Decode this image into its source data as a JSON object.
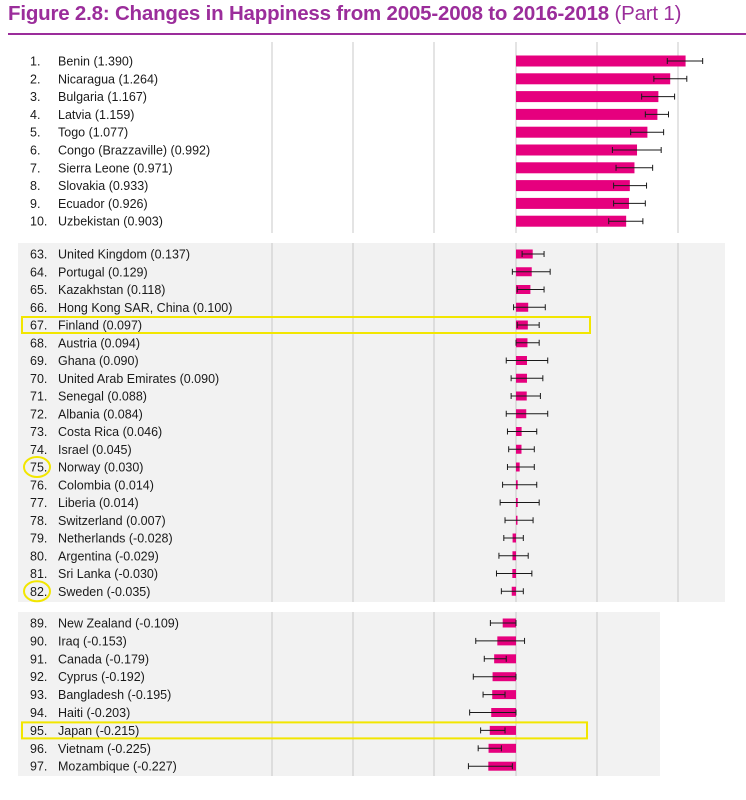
{
  "title": {
    "main": "Figure 2.8: Changes in Happiness from 2005-2008 to 2016-2018",
    "part": "(Part 1)"
  },
  "colors": {
    "title": "#9b2d9b",
    "bar": "#e6007e",
    "error_bar": "#1a1a1a",
    "highlight": "#f2e600",
    "panel_bg": "#f2f2f2",
    "grid": "#c8c8c8"
  },
  "chart_data": {
    "type": "bar",
    "orientation": "horizontal",
    "grid": true,
    "legend": "none",
    "panels": [
      {
        "rows": [
          {
            "rank": "1.",
            "country": "Benin",
            "value": 1.39,
            "err_low": 1.24,
            "err_high": 1.53
          },
          {
            "rank": "2.",
            "country": "Nicaragua",
            "value": 1.264,
            "err_low": 1.13,
            "err_high": 1.4
          },
          {
            "rank": "3.",
            "country": "Bulgaria",
            "value": 1.167,
            "err_low": 1.03,
            "err_high": 1.3
          },
          {
            "rank": "4.",
            "country": "Latvia",
            "value": 1.159,
            "err_low": 1.06,
            "err_high": 1.25
          },
          {
            "rank": "5.",
            "country": "Togo",
            "value": 1.077,
            "err_low": 0.94,
            "err_high": 1.21
          },
          {
            "rank": "6.",
            "country": "Congo (Brazzaville)",
            "value": 0.992,
            "err_low": 0.79,
            "err_high": 1.19
          },
          {
            "rank": "7.",
            "country": "Sierra Leone",
            "value": 0.971,
            "err_low": 0.82,
            "err_high": 1.12
          },
          {
            "rank": "8.",
            "country": "Slovakia",
            "value": 0.933,
            "err_low": 0.8,
            "err_high": 1.07
          },
          {
            "rank": "9.",
            "country": "Ecuador",
            "value": 0.926,
            "err_low": 0.8,
            "err_high": 1.06
          },
          {
            "rank": "10.",
            "country": "Uzbekistan",
            "value": 0.903,
            "err_low": 0.76,
            "err_high": 1.04
          }
        ]
      },
      {
        "rows": [
          {
            "rank": "63.",
            "country": "United Kingdom",
            "value": 0.137,
            "err_low": 0.05,
            "err_high": 0.23
          },
          {
            "rank": "64.",
            "country": "Portugal",
            "value": 0.129,
            "err_low": -0.03,
            "err_high": 0.28
          },
          {
            "rank": "65.",
            "country": "Kazakhstan",
            "value": 0.118,
            "err_low": 0.01,
            "err_high": 0.23
          },
          {
            "rank": "66.",
            "country": "Hong Kong SAR, China",
            "value": 0.1,
            "err_low": -0.02,
            "err_high": 0.24
          },
          {
            "rank": "67.",
            "country": "Finland",
            "value": 0.097,
            "err_low": 0.01,
            "err_high": 0.19
          },
          {
            "rank": "68.",
            "country": "Austria",
            "value": 0.094,
            "err_low": 0.0,
            "err_high": 0.19
          },
          {
            "rank": "69.",
            "country": "Ghana",
            "value": 0.09,
            "err_low": -0.08,
            "err_high": 0.26
          },
          {
            "rank": "70.",
            "country": "United Arab Emirates",
            "value": 0.09,
            "err_low": -0.04,
            "err_high": 0.22
          },
          {
            "rank": "71.",
            "country": "Senegal",
            "value": 0.088,
            "err_low": -0.04,
            "err_high": 0.2
          },
          {
            "rank": "72.",
            "country": "Albania",
            "value": 0.084,
            "err_low": -0.08,
            "err_high": 0.26
          },
          {
            "rank": "73.",
            "country": "Costa Rica",
            "value": 0.046,
            "err_low": -0.07,
            "err_high": 0.17
          },
          {
            "rank": "74.",
            "country": "Israel",
            "value": 0.045,
            "err_low": -0.06,
            "err_high": 0.15
          },
          {
            "rank": "75.",
            "country": "Norway",
            "value": 0.03,
            "err_low": -0.07,
            "err_high": 0.15
          },
          {
            "rank": "76.",
            "country": "Colombia",
            "value": 0.014,
            "err_low": -0.11,
            "err_high": 0.17
          },
          {
            "rank": "77.",
            "country": "Liberia",
            "value": 0.014,
            "err_low": -0.13,
            "err_high": 0.19
          },
          {
            "rank": "78.",
            "country": "Switzerland",
            "value": 0.007,
            "err_low": -0.09,
            "err_high": 0.14
          },
          {
            "rank": "79.",
            "country": "Netherlands",
            "value": -0.028,
            "err_low": -0.1,
            "err_high": 0.06
          },
          {
            "rank": "80.",
            "country": "Argentina",
            "value": -0.029,
            "err_low": -0.14,
            "err_high": 0.1
          },
          {
            "rank": "81.",
            "country": "Sri Lanka",
            "value": -0.03,
            "err_low": -0.16,
            "err_high": 0.13
          },
          {
            "rank": "82.",
            "country": "Sweden",
            "value": -0.035,
            "err_low": -0.12,
            "err_high": 0.06
          }
        ]
      },
      {
        "rows": [
          {
            "rank": "89.",
            "country": "New Zealand",
            "value": -0.109,
            "err_low": -0.21,
            "err_high": 0.0
          },
          {
            "rank": "90.",
            "country": "Iraq",
            "value": -0.153,
            "err_low": -0.33,
            "err_high": 0.07
          },
          {
            "rank": "91.",
            "country": "Canada",
            "value": -0.179,
            "err_low": -0.26,
            "err_high": -0.08
          },
          {
            "rank": "92.",
            "country": "Cyprus",
            "value": -0.192,
            "err_low": -0.35,
            "err_high": 0.0
          },
          {
            "rank": "93.",
            "country": "Bangladesh",
            "value": -0.195,
            "err_low": -0.27,
            "err_high": -0.09
          },
          {
            "rank": "94.",
            "country": "Haiti",
            "value": -0.203,
            "err_low": -0.38,
            "err_high": 0.0
          },
          {
            "rank": "95.",
            "country": "Japan",
            "value": -0.215,
            "err_low": -0.29,
            "err_high": -0.09
          },
          {
            "rank": "96.",
            "country": "Vietnam",
            "value": -0.225,
            "err_low": -0.31,
            "err_high": -0.12
          },
          {
            "rank": "97.",
            "country": "Mozambique",
            "value": -0.227,
            "err_low": -0.39,
            "err_high": -0.03
          }
        ]
      }
    ],
    "highlights": {
      "boxed_rows": [
        "67.",
        "95."
      ],
      "circled_ranks": [
        "75.",
        "82."
      ]
    }
  }
}
